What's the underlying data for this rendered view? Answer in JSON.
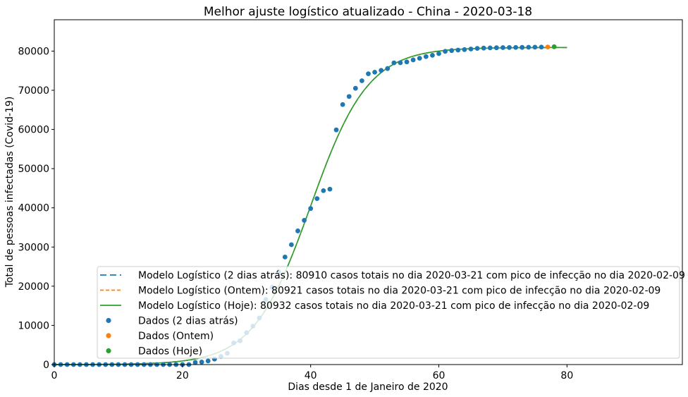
{
  "chart_data": {
    "type": "scatter",
    "title": "Melhor ajuste logístico atualizado - China - 2020-03-18",
    "xlabel": "Dias desde 1 de Janeiro de 2020",
    "ylabel": "Total de pessoas infectadas (Covid-19)",
    "xlim": [
      0,
      98
    ],
    "ylim": [
      0,
      88000
    ],
    "xticks": [
      0,
      20,
      40,
      60,
      80
    ],
    "yticks": [
      0,
      10000,
      20000,
      30000,
      40000,
      50000,
      60000,
      70000,
      80000
    ],
    "grid": false,
    "legend_position": "bottom-right",
    "models": [
      {
        "name": "Modelo Logístico (2 dias atrás): 80910 casos totais no dia 2020-03-21 com pico de infecção no dia 2020-02-09",
        "style": "dashed-long",
        "color": "#1f77b4",
        "K": 80910,
        "t0": 40,
        "k": 0.223,
        "x_range": [
          0,
          80
        ]
      },
      {
        "name": "Modelo Logístico (Ontem): 80921 casos totais no dia 2020-03-21 com pico de infecção no dia 2020-02-09",
        "style": "dashed",
        "color": "#ff7f0e",
        "K": 80921,
        "t0": 40,
        "k": 0.223,
        "x_range": [
          0,
          80
        ]
      },
      {
        "name": "Modelo Logístico (Hoje): 80932 casos totais no dia 2020-03-21 com pico de infecção no dia 2020-02-09",
        "style": "solid",
        "color": "#2ca02c",
        "K": 80932,
        "t0": 40,
        "k": 0.223,
        "x_range": [
          0,
          80
        ]
      }
    ],
    "series": [
      {
        "name": "Dados (2 dias atrás)",
        "color": "#1f77b4",
        "x": [
          0,
          1,
          2,
          3,
          4,
          5,
          6,
          7,
          8,
          9,
          10,
          11,
          12,
          13,
          14,
          15,
          16,
          17,
          18,
          19,
          20,
          21,
          22,
          23,
          24,
          25,
          26,
          27,
          28,
          29,
          30,
          31,
          32,
          33,
          34,
          35,
          36,
          37,
          38,
          39,
          40,
          41,
          42,
          43,
          44,
          45,
          46,
          47,
          48,
          49,
          50,
          51,
          52,
          53,
          54,
          55,
          56,
          57,
          58,
          59,
          60,
          61,
          62,
          63,
          64,
          65,
          66,
          67,
          68,
          69,
          70,
          71,
          72,
          73,
          74,
          75,
          76
        ],
        "y": [
          0,
          0,
          0,
          0,
          0,
          0,
          0,
          0,
          0,
          0,
          0,
          0,
          0,
          0,
          0,
          0,
          0,
          0,
          0,
          0,
          0,
          0,
          548,
          643,
          920,
          1406,
          2075,
          2877,
          5509,
          6087,
          8141,
          9802,
          11891,
          16630,
          19716,
          23707,
          27440,
          30587,
          34110,
          36814,
          39829,
          42354,
          44386,
          44759,
          59895,
          66358,
          68413,
          70513,
          72434,
          74211,
          74619,
          75077,
          75550,
          77001,
          77022,
          77241,
          77754,
          78166,
          78600,
          78928,
          79356,
          79932,
          80136,
          80261,
          80386,
          80537,
          80690,
          80770,
          80823,
          80860,
          80887,
          80921,
          80932,
          80945,
          80977,
          81003,
          81021
        ]
      },
      {
        "name": "Dados (Ontem)",
        "color": "#ff7f0e",
        "x": [
          77
        ],
        "y": [
          81048
        ]
      },
      {
        "name": "Dados (Hoje)",
        "color": "#2ca02c",
        "x": [
          78
        ],
        "y": [
          81102
        ]
      }
    ]
  }
}
